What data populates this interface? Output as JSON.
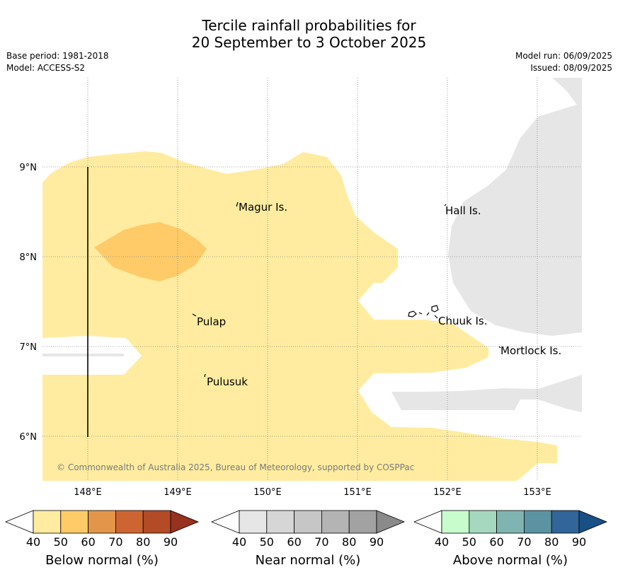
{
  "header": {
    "title_line1": "Tercile rainfall probabilities for",
    "title_line2": "20 September to 3 October 2025",
    "base_period": "Base period: 1981-2018",
    "model": "Model: ACCESS-S2",
    "model_run": "Model run: 06/09/2025",
    "issued": "Issued: 08/09/2025"
  },
  "map": {
    "lat_labels": [
      "9°N",
      "8°N",
      "7°N",
      "6°N"
    ],
    "lon_labels": [
      "148°E",
      "149°E",
      "150°E",
      "151°E",
      "152°E",
      "153°E"
    ],
    "places": {
      "magur": "Magur Is.",
      "hall": "Hall Is.",
      "pulap": "Pulap",
      "chuuk": "Chuuk Is.",
      "mortlock": "Mortlock Is.",
      "pulusuk": "Pulusuk"
    },
    "copyright": "© Commonwealth of Australia 2025, Bureau of Meteorology, supported by COSPPac",
    "colors": {
      "below_40_50": "#ffeca0",
      "below_50_60": "#fecb68",
      "near_normal": "#e6e6e6"
    }
  },
  "legend": {
    "below": {
      "label": "Below normal (%)",
      "ticks": [
        "40",
        "50",
        "60",
        "70",
        "80",
        "90"
      ],
      "colors": [
        "#ffeca0",
        "#fecb68",
        "#e3964a",
        "#cd6533",
        "#b34b27",
        "#96321f"
      ]
    },
    "near": {
      "label": "Near normal (%)",
      "ticks": [
        "40",
        "50",
        "60",
        "70",
        "80",
        "90"
      ],
      "colors": [
        "#e6e6e6",
        "#d6d6d6",
        "#c6c6c6",
        "#b4b4b4",
        "#a2a2a2",
        "#8a8a8a"
      ]
    },
    "above": {
      "label": "Above normal (%)",
      "ticks": [
        "40",
        "50",
        "60",
        "70",
        "80",
        "90"
      ],
      "colors": [
        "#c8fccc",
        "#a5d8bf",
        "#80b4b0",
        "#5c93a2",
        "#326599",
        "#184f85"
      ]
    }
  }
}
